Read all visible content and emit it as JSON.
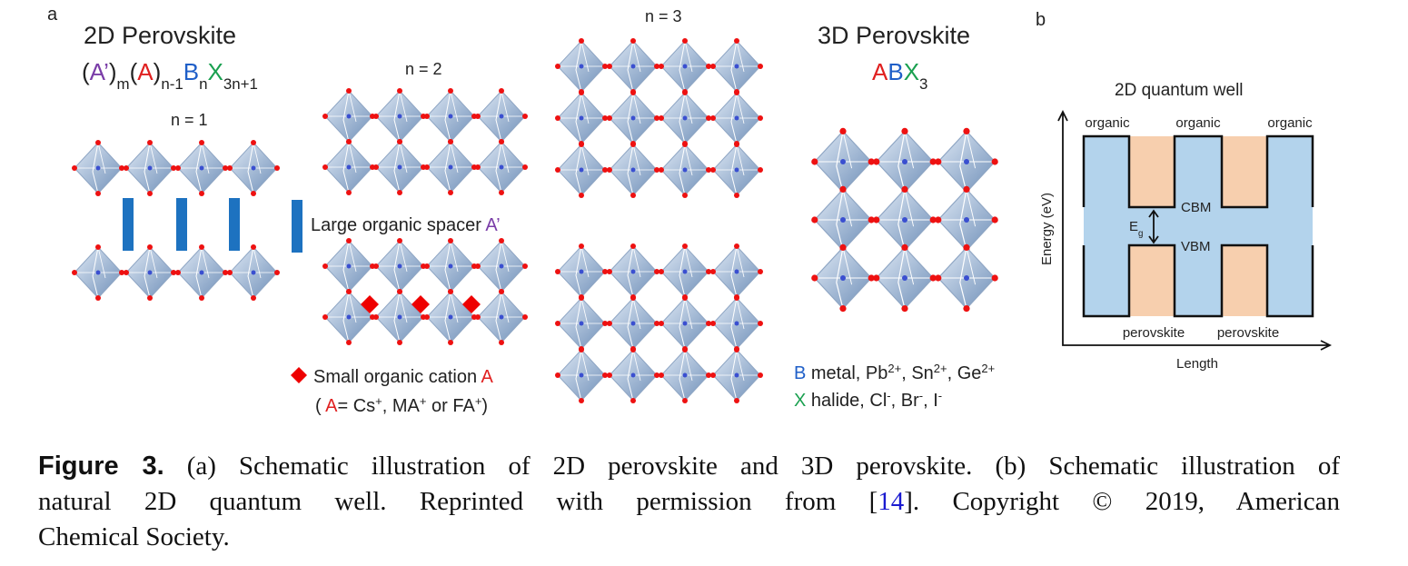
{
  "panel_a": {
    "label": "a",
    "title_2d": "2D Perovskite",
    "formula": [
      "(",
      "A’",
      ")",
      "m",
      "(",
      "A",
      ")",
      "n-1",
      "B",
      "n",
      "X",
      "3n+1"
    ],
    "n1": "n = 1",
    "n2": "n = 2",
    "n3": "n = 3",
    "title_3d": "3D Perovskite",
    "abx3": [
      "A",
      "B",
      "X",
      "3"
    ],
    "spacer": [
      "Large organic spacer ",
      "A’"
    ],
    "cation": [
      "Small organic cation ",
      "A"
    ],
    "cation_examples": [
      "( ",
      "A",
      "= Cs",
      "+",
      ", MA",
      "+",
      " or FA",
      "+",
      ")"
    ],
    "b_metal": [
      "B",
      " metal, Pb",
      "2+",
      ", Sn",
      "2+",
      ", Ge",
      "2+"
    ],
    "x_halide": [
      "X",
      " halide, Cl",
      "-",
      ", Br",
      "-",
      ", I",
      "-"
    ]
  },
  "panel_b": {
    "label": "b",
    "title": "2D quantum well",
    "organic": [
      "organic",
      "organic",
      "organic"
    ],
    "cbm": "CBM",
    "vbm": "VBM",
    "eg": [
      "E",
      "g"
    ],
    "perovskite": [
      "perovskite",
      "perovskite"
    ],
    "y_axis": "Energy (eV)",
    "x_axis": "Length"
  },
  "caption": {
    "label": "Figure 3.",
    "line1": " (a) Schematic illustration of 2D perovskite and 3D perovskite. (b) Schematic illustration of",
    "line2": [
      "natural 2D quantum well. Reprinted with permission from [",
      "14",
      "]. Copyright © 2019, American"
    ],
    "line3": "Chemical Society."
  }
}
